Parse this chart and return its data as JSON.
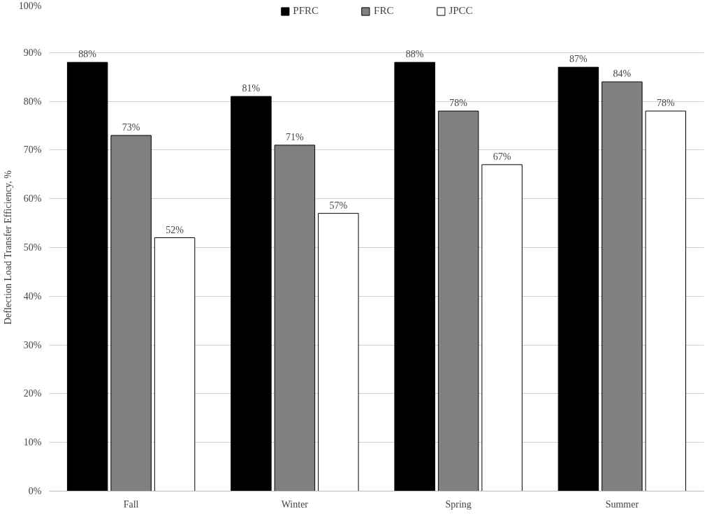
{
  "chart_data": {
    "type": "bar",
    "ylabel": "Deflection Load Transfer Efficiency, %",
    "categories": [
      "Fall",
      "Winter",
      "Spring",
      "Summer"
    ],
    "series": [
      {
        "name": "PFRC",
        "color": "#000000",
        "values": [
          88,
          81,
          88,
          87
        ],
        "value_labels": [
          "88%",
          "81%",
          "88%",
          "87%"
        ]
      },
      {
        "name": "FRC",
        "color": "#808080",
        "values": [
          73,
          71,
          78,
          84
        ],
        "value_labels": [
          "73%",
          "71%",
          "78%",
          "84%"
        ]
      },
      {
        "name": "JPCC",
        "color": "#ffffff",
        "values": [
          52,
          57,
          67,
          78
        ],
        "value_labels": [
          "52%",
          "57%",
          "67%",
          "78%"
        ]
      }
    ],
    "ylim": [
      0,
      100
    ],
    "yticks": [
      {
        "value": 0,
        "label": "0%"
      },
      {
        "value": 10,
        "label": "10%"
      },
      {
        "value": 20,
        "label": "20%"
      },
      {
        "value": 30,
        "label": "30%"
      },
      {
        "value": 40,
        "label": "40%"
      },
      {
        "value": 50,
        "label": "50%"
      },
      {
        "value": 60,
        "label": "60%"
      },
      {
        "value": 70,
        "label": "70%"
      },
      {
        "value": 80,
        "label": "80%"
      },
      {
        "value": 90,
        "label": "90%"
      },
      {
        "value": 100,
        "label": "100%"
      }
    ],
    "grid": "y",
    "legend": "top"
  }
}
